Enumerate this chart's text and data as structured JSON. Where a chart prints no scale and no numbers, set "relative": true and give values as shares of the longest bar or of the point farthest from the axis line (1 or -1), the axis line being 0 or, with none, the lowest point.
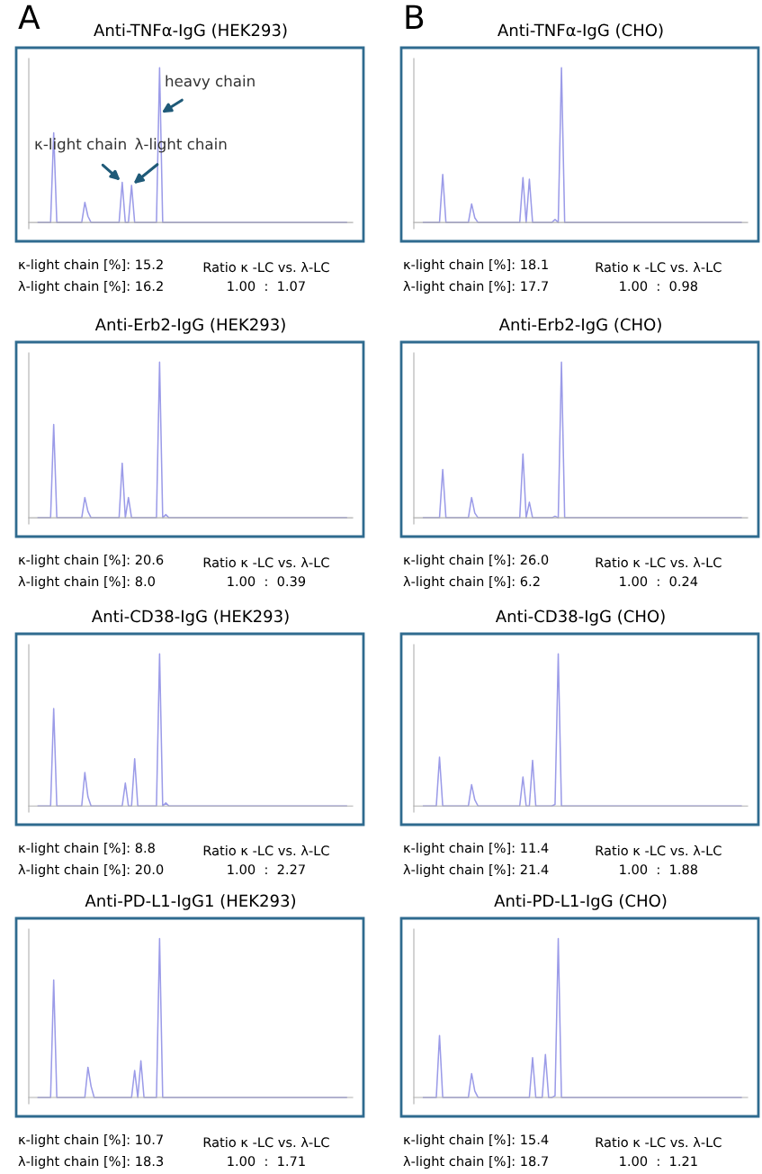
{
  "chart_data": [
    {
      "type": "line",
      "relative": true,
      "title": "Anti-TNFα-IgG (HEK293)",
      "categories": [
        null,
        null,
        null,
        null,
        null,
        null,
        null,
        null,
        null,
        null,
        null,
        null,
        null,
        null,
        null,
        null,
        null,
        null,
        null,
        null,
        null,
        null,
        null,
        null,
        null,
        null,
        null,
        null,
        null,
        null,
        null,
        null,
        null,
        null,
        null,
        null,
        null,
        null,
        null,
        null,
        null,
        null,
        null,
        null,
        null,
        null,
        null,
        null,
        null,
        null,
        null,
        null,
        null,
        null,
        null,
        null,
        null,
        null,
        null,
        null,
        null,
        null,
        null,
        null,
        null,
        null,
        null,
        null,
        null,
        null,
        null,
        null,
        null,
        null,
        null,
        null,
        null,
        null,
        null,
        null,
        null,
        null,
        null,
        null,
        null,
        null,
        null,
        null,
        null,
        null,
        null,
        null,
        null,
        null,
        null,
        null,
        null,
        null,
        null,
        null
      ],
      "series": [
        {
          "color": "#9b9be8",
          "values": [
            0,
            0,
            0,
            0,
            0,
            0.58,
            0,
            0,
            0,
            0,
            0,
            0,
            0,
            0,
            0,
            0.13,
            0.04,
            0,
            0,
            0,
            0,
            0,
            0,
            0,
            0,
            0,
            0,
            0.26,
            0,
            0,
            0.24,
            0,
            0,
            0,
            0,
            0,
            0,
            0,
            0,
            1,
            0,
            0,
            0,
            0,
            0,
            0,
            0,
            0,
            0,
            0,
            0,
            0,
            0,
            0,
            0,
            0,
            0,
            0,
            0,
            0,
            0,
            0,
            0,
            0,
            0,
            0,
            0,
            0,
            0,
            0,
            0,
            0,
            0,
            0,
            0,
            0,
            0,
            0,
            0,
            0,
            0,
            0,
            0,
            0,
            0,
            0,
            0,
            0,
            0,
            0,
            0,
            0,
            0,
            0,
            0,
            0,
            0,
            0,
            0,
            0
          ]
        }
      ],
      "annotations": [
        "κ-light chain [%]: 15.2",
        "λ-light chain [%]: 16.2",
        "Ratio κ -LC vs. λ-LC",
        "1.00  :  1.07",
        "A",
        "heavy chain",
        "κ-light chain",
        "λ-light chain"
      ]
    },
    {
      "type": "line",
      "relative": true,
      "title": "Anti-TNFα-IgG (CHO)",
      "categories": [
        null,
        null,
        null,
        null,
        null,
        null,
        null,
        null,
        null,
        null,
        null,
        null,
        null,
        null,
        null,
        null,
        null,
        null,
        null,
        null,
        null,
        null,
        null,
        null,
        null,
        null,
        null,
        null,
        null,
        null,
        null,
        null,
        null,
        null,
        null,
        null,
        null,
        null,
        null,
        null,
        null,
        null,
        null,
        null,
        null,
        null,
        null,
        null,
        null,
        null,
        null,
        null,
        null,
        null,
        null,
        null,
        null,
        null,
        null,
        null,
        null,
        null,
        null,
        null,
        null,
        null,
        null,
        null,
        null,
        null,
        null,
        null,
        null,
        null,
        null,
        null,
        null,
        null,
        null,
        null,
        null,
        null,
        null,
        null,
        null,
        null,
        null,
        null,
        null,
        null,
        null,
        null,
        null,
        null,
        null,
        null,
        null,
        null,
        null,
        null
      ],
      "series": [
        {
          "color": "#9b9be8",
          "values": [
            0,
            0,
            0,
            0,
            0,
            0,
            0.31,
            0,
            0,
            0,
            0,
            0,
            0,
            0,
            0,
            0.12,
            0.03,
            0,
            0,
            0,
            0,
            0,
            0,
            0,
            0,
            0,
            0,
            0,
            0,
            0,
            0,
            0.29,
            0,
            0.28,
            0,
            0,
            0,
            0,
            0,
            0,
            0,
            0.02,
            0,
            1,
            0,
            0,
            0,
            0,
            0,
            0,
            0,
            0,
            0,
            0,
            0,
            0,
            0,
            0,
            0,
            0,
            0,
            0,
            0,
            0,
            0,
            0,
            0,
            0,
            0,
            0,
            0,
            0,
            0,
            0,
            0,
            0,
            0,
            0,
            0,
            0,
            0,
            0,
            0,
            0,
            0,
            0,
            0,
            0,
            0,
            0,
            0,
            0,
            0,
            0,
            0,
            0,
            0,
            0,
            0,
            0
          ]
        }
      ],
      "annotations": [
        "κ-light chain [%]: 18.1",
        "λ-light chain [%]: 17.7",
        "Ratio κ -LC vs. λ-LC",
        "1.00  :  0.98",
        "B"
      ]
    },
    {
      "type": "line",
      "relative": true,
      "title": "Anti-Erb2-IgG (HEK293)",
      "categories": [
        null,
        null,
        null,
        null,
        null,
        null,
        null,
        null,
        null,
        null,
        null,
        null,
        null,
        null,
        null,
        null,
        null,
        null,
        null,
        null,
        null,
        null,
        null,
        null,
        null,
        null,
        null,
        null,
        null,
        null,
        null,
        null,
        null,
        null,
        null,
        null,
        null,
        null,
        null,
        null,
        null,
        null,
        null,
        null,
        null,
        null,
        null,
        null,
        null,
        null,
        null,
        null,
        null,
        null,
        null,
        null,
        null,
        null,
        null,
        null,
        null,
        null,
        null,
        null,
        null,
        null,
        null,
        null,
        null,
        null,
        null,
        null,
        null,
        null,
        null,
        null,
        null,
        null,
        null,
        null,
        null,
        null,
        null,
        null,
        null,
        null,
        null,
        null,
        null,
        null,
        null,
        null,
        null,
        null,
        null,
        null,
        null,
        null,
        null,
        null
      ],
      "series": [
        {
          "color": "#9b9be8",
          "values": [
            0,
            0,
            0,
            0,
            0,
            0.6,
            0,
            0,
            0,
            0,
            0,
            0,
            0,
            0,
            0,
            0.13,
            0.04,
            0,
            0,
            0,
            0,
            0,
            0,
            0,
            0,
            0,
            0,
            0.35,
            0,
            0.13,
            0,
            0,
            0,
            0,
            0,
            0,
            0,
            0,
            0,
            1,
            0,
            0.02,
            0,
            0,
            0,
            0,
            0,
            0,
            0,
            0,
            0,
            0,
            0,
            0,
            0,
            0,
            0,
            0,
            0,
            0,
            0,
            0,
            0,
            0,
            0,
            0,
            0,
            0,
            0,
            0,
            0,
            0,
            0,
            0,
            0,
            0,
            0,
            0,
            0,
            0,
            0,
            0,
            0,
            0,
            0,
            0,
            0,
            0,
            0,
            0,
            0,
            0,
            0,
            0,
            0,
            0,
            0,
            0,
            0,
            0
          ]
        }
      ],
      "annotations": [
        "κ-light chain [%]: 20.6",
        "λ-light chain [%]: 8.0",
        "Ratio κ -LC vs. λ-LC",
        "1.00  :  0.39"
      ]
    },
    {
      "type": "line",
      "relative": true,
      "title": "Anti-Erb2-IgG (CHO)",
      "categories": [
        null,
        null,
        null,
        null,
        null,
        null,
        null,
        null,
        null,
        null,
        null,
        null,
        null,
        null,
        null,
        null,
        null,
        null,
        null,
        null,
        null,
        null,
        null,
        null,
        null,
        null,
        null,
        null,
        null,
        null,
        null,
        null,
        null,
        null,
        null,
        null,
        null,
        null,
        null,
        null,
        null,
        null,
        null,
        null,
        null,
        null,
        null,
        null,
        null,
        null,
        null,
        null,
        null,
        null,
        null,
        null,
        null,
        null,
        null,
        null,
        null,
        null,
        null,
        null,
        null,
        null,
        null,
        null,
        null,
        null,
        null,
        null,
        null,
        null,
        null,
        null,
        null,
        null,
        null,
        null,
        null,
        null,
        null,
        null,
        null,
        null,
        null,
        null,
        null,
        null,
        null,
        null,
        null,
        null,
        null,
        null,
        null,
        null,
        null,
        null
      ],
      "series": [
        {
          "color": "#9b9be8",
          "values": [
            0,
            0,
            0,
            0,
            0,
            0,
            0.31,
            0,
            0,
            0,
            0,
            0,
            0,
            0,
            0,
            0.13,
            0.03,
            0,
            0,
            0,
            0,
            0,
            0,
            0,
            0,
            0,
            0,
            0,
            0,
            0,
            0,
            0.41,
            0,
            0.1,
            0,
            0,
            0,
            0,
            0,
            0,
            0,
            0.01,
            0,
            1,
            0,
            0,
            0,
            0,
            0,
            0,
            0,
            0,
            0,
            0,
            0,
            0,
            0,
            0,
            0,
            0,
            0,
            0,
            0,
            0,
            0,
            0,
            0,
            0,
            0,
            0,
            0,
            0,
            0,
            0,
            0,
            0,
            0,
            0,
            0,
            0,
            0,
            0,
            0,
            0,
            0,
            0,
            0,
            0,
            0,
            0,
            0,
            0,
            0,
            0,
            0,
            0,
            0,
            0,
            0,
            0
          ]
        }
      ],
      "annotations": [
        "κ-light chain [%]: 26.0",
        "λ-light chain [%]: 6.2",
        "Ratio κ -LC vs. λ-LC",
        "1.00  :  0.24"
      ]
    },
    {
      "type": "line",
      "relative": true,
      "title": "Anti-CD38-IgG (HEK293)",
      "categories": [
        null,
        null,
        null,
        null,
        null,
        null,
        null,
        null,
        null,
        null,
        null,
        null,
        null,
        null,
        null,
        null,
        null,
        null,
        null,
        null,
        null,
        null,
        null,
        null,
        null,
        null,
        null,
        null,
        null,
        null,
        null,
        null,
        null,
        null,
        null,
        null,
        null,
        null,
        null,
        null,
        null,
        null,
        null,
        null,
        null,
        null,
        null,
        null,
        null,
        null,
        null,
        null,
        null,
        null,
        null,
        null,
        null,
        null,
        null,
        null,
        null,
        null,
        null,
        null,
        null,
        null,
        null,
        null,
        null,
        null,
        null,
        null,
        null,
        null,
        null,
        null,
        null,
        null,
        null,
        null,
        null,
        null,
        null,
        null,
        null,
        null,
        null,
        null,
        null,
        null,
        null,
        null,
        null,
        null,
        null,
        null,
        null,
        null,
        null,
        null
      ],
      "series": [
        {
          "color": "#9b9be8",
          "values": [
            0,
            0,
            0,
            0,
            0,
            0.64,
            0,
            0,
            0,
            0,
            0,
            0,
            0,
            0,
            0,
            0.22,
            0.06,
            0,
            0,
            0,
            0,
            0,
            0,
            0,
            0,
            0,
            0,
            0,
            0.15,
            0,
            0,
            0.31,
            0,
            0,
            0,
            0,
            0,
            0,
            0,
            1,
            0,
            0.02,
            0,
            0,
            0,
            0,
            0,
            0,
            0,
            0,
            0,
            0,
            0,
            0,
            0,
            0,
            0,
            0,
            0,
            0,
            0,
            0,
            0,
            0,
            0,
            0,
            0,
            0,
            0,
            0,
            0,
            0,
            0,
            0,
            0,
            0,
            0,
            0,
            0,
            0,
            0,
            0,
            0,
            0,
            0,
            0,
            0,
            0,
            0,
            0,
            0,
            0,
            0,
            0,
            0,
            0,
            0,
            0,
            0,
            0
          ]
        }
      ],
      "annotations": [
        "κ-light chain [%]: 8.8",
        "λ-light chain [%]: 20.0",
        "Ratio κ -LC vs. λ-LC",
        "1.00  :  2.27"
      ]
    },
    {
      "type": "line",
      "relative": true,
      "title": "Anti-CD38-IgG (CHO)",
      "categories": [
        null,
        null,
        null,
        null,
        null,
        null,
        null,
        null,
        null,
        null,
        null,
        null,
        null,
        null,
        null,
        null,
        null,
        null,
        null,
        null,
        null,
        null,
        null,
        null,
        null,
        null,
        null,
        null,
        null,
        null,
        null,
        null,
        null,
        null,
        null,
        null,
        null,
        null,
        null,
        null,
        null,
        null,
        null,
        null,
        null,
        null,
        null,
        null,
        null,
        null,
        null,
        null,
        null,
        null,
        null,
        null,
        null,
        null,
        null,
        null,
        null,
        null,
        null,
        null,
        null,
        null,
        null,
        null,
        null,
        null,
        null,
        null,
        null,
        null,
        null,
        null,
        null,
        null,
        null,
        null,
        null,
        null,
        null,
        null,
        null,
        null,
        null,
        null,
        null,
        null,
        null,
        null,
        null,
        null,
        null,
        null,
        null,
        null,
        null,
        null
      ],
      "series": [
        {
          "color": "#9b9be8",
          "values": [
            0,
            0,
            0,
            0,
            0,
            0.32,
            0,
            0,
            0,
            0,
            0,
            0,
            0,
            0,
            0,
            0.14,
            0.04,
            0,
            0,
            0,
            0,
            0,
            0,
            0,
            0,
            0,
            0,
            0,
            0,
            0,
            0,
            0.19,
            0,
            0,
            0.3,
            0,
            0,
            0,
            0,
            0,
            0,
            0.01,
            1,
            0,
            0,
            0,
            0,
            0,
            0,
            0,
            0,
            0,
            0,
            0,
            0,
            0,
            0,
            0,
            0,
            0,
            0,
            0,
            0,
            0,
            0,
            0,
            0,
            0,
            0,
            0,
            0,
            0,
            0,
            0,
            0,
            0,
            0,
            0,
            0,
            0,
            0,
            0,
            0,
            0,
            0,
            0,
            0,
            0,
            0,
            0,
            0,
            0,
            0,
            0,
            0,
            0,
            0,
            0,
            0,
            0
          ]
        }
      ],
      "annotations": [
        "κ-light chain [%]: 11.4",
        "λ-light chain [%]: 21.4",
        "Ratio κ -LC vs. λ-LC",
        "1.00  :  1.88"
      ]
    },
    {
      "type": "line",
      "relative": true,
      "title": "Anti-PD-L1-IgG1 (HEK293)",
      "categories": [
        null,
        null,
        null,
        null,
        null,
        null,
        null,
        null,
        null,
        null,
        null,
        null,
        null,
        null,
        null,
        null,
        null,
        null,
        null,
        null,
        null,
        null,
        null,
        null,
        null,
        null,
        null,
        null,
        null,
        null,
        null,
        null,
        null,
        null,
        null,
        null,
        null,
        null,
        null,
        null,
        null,
        null,
        null,
        null,
        null,
        null,
        null,
        null,
        null,
        null,
        null,
        null,
        null,
        null,
        null,
        null,
        null,
        null,
        null,
        null,
        null,
        null,
        null,
        null,
        null,
        null,
        null,
        null,
        null,
        null,
        null,
        null,
        null,
        null,
        null,
        null,
        null,
        null,
        null,
        null,
        null,
        null,
        null,
        null,
        null,
        null,
        null,
        null,
        null,
        null,
        null,
        null,
        null,
        null,
        null,
        null,
        null,
        null,
        null,
        null
      ],
      "series": [
        {
          "color": "#9b9be8",
          "values": [
            0,
            0,
            0,
            0,
            0,
            0.74,
            0,
            0,
            0,
            0,
            0,
            0,
            0,
            0,
            0,
            0,
            0.19,
            0.07,
            0,
            0,
            0,
            0,
            0,
            0,
            0,
            0,
            0,
            0,
            0,
            0,
            0,
            0.17,
            0,
            0.23,
            0,
            0,
            0,
            0,
            0,
            1,
            0,
            0,
            0,
            0,
            0,
            0,
            0,
            0,
            0,
            0,
            0,
            0,
            0,
            0,
            0,
            0,
            0,
            0,
            0,
            0,
            0,
            0,
            0,
            0,
            0,
            0,
            0,
            0,
            0,
            0,
            0,
            0,
            0,
            0,
            0,
            0,
            0,
            0,
            0,
            0,
            0,
            0,
            0,
            0,
            0,
            0,
            0,
            0,
            0,
            0,
            0,
            0,
            0,
            0,
            0,
            0,
            0,
            0,
            0,
            0
          ]
        }
      ],
      "annotations": [
        "κ-light chain [%]: 10.7",
        "λ-light chain [%]: 18.3",
        "Ratio κ -LC vs. λ-LC",
        "1.00  :  1.71"
      ]
    },
    {
      "type": "line",
      "relative": true,
      "title": "Anti-PD-L1-IgG (CHO)",
      "categories": [
        null,
        null,
        null,
        null,
        null,
        null,
        null,
        null,
        null,
        null,
        null,
        null,
        null,
        null,
        null,
        null,
        null,
        null,
        null,
        null,
        null,
        null,
        null,
        null,
        null,
        null,
        null,
        null,
        null,
        null,
        null,
        null,
        null,
        null,
        null,
        null,
        null,
        null,
        null,
        null,
        null,
        null,
        null,
        null,
        null,
        null,
        null,
        null,
        null,
        null,
        null,
        null,
        null,
        null,
        null,
        null,
        null,
        null,
        null,
        null,
        null,
        null,
        null,
        null,
        null,
        null,
        null,
        null,
        null,
        null,
        null,
        null,
        null,
        null,
        null,
        null,
        null,
        null,
        null,
        null,
        null,
        null,
        null,
        null,
        null,
        null,
        null,
        null,
        null,
        null,
        null,
        null,
        null,
        null,
        null,
        null,
        null,
        null,
        null,
        null
      ],
      "series": [
        {
          "color": "#9b9be8",
          "values": [
            0,
            0,
            0,
            0,
            0,
            0.39,
            0,
            0,
            0,
            0,
            0,
            0,
            0,
            0,
            0,
            0.15,
            0.04,
            0,
            0,
            0,
            0,
            0,
            0,
            0,
            0,
            0,
            0,
            0,
            0,
            0,
            0,
            0,
            0,
            0,
            0.25,
            0,
            0,
            0,
            0.27,
            0,
            0,
            0.01,
            1,
            0,
            0,
            0,
            0,
            0,
            0,
            0,
            0,
            0,
            0,
            0,
            0,
            0,
            0,
            0,
            0,
            0,
            0,
            0,
            0,
            0,
            0,
            0,
            0,
            0,
            0,
            0,
            0,
            0,
            0,
            0,
            0,
            0,
            0,
            0,
            0,
            0,
            0,
            0,
            0,
            0,
            0,
            0,
            0,
            0,
            0,
            0,
            0,
            0,
            0,
            0,
            0,
            0,
            0,
            0,
            0,
            0
          ]
        }
      ],
      "annotations": [
        "κ-light chain [%]: 15.4",
        "λ-light chain [%]: 18.7",
        "Ratio κ -LC vs. λ-LC",
        "1.00  :  1.21"
      ]
    }
  ]
}
